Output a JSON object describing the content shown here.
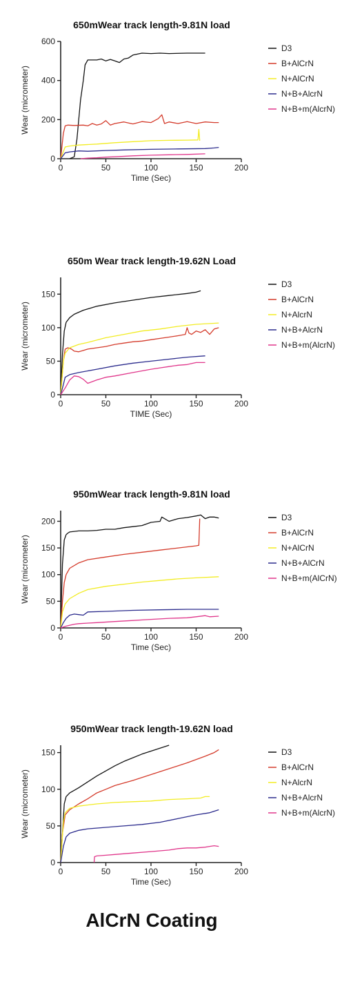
{
  "footer": {
    "title": "AlCrN Coating"
  },
  "chart_data": [
    {
      "type": "line",
      "title": "650mWear track length-9.81N load",
      "xlabel": "Time (Sec)",
      "ylabel": "Wear (micrometer)",
      "xlim": [
        0,
        200
      ],
      "ylim": [
        0,
        600
      ],
      "xticks": [
        0,
        50,
        100,
        150,
        200
      ],
      "yticks": [
        0,
        200,
        400,
        600
      ],
      "legend_position": "right",
      "grid": false,
      "series": [
        {
          "name": "D3",
          "color": "#111111",
          "x": [
            10,
            15,
            18,
            20,
            22,
            25,
            27,
            30,
            40,
            45,
            50,
            55,
            60,
            65,
            70,
            75,
            80,
            90,
            100,
            110,
            120,
            140,
            160
          ],
          "y": [
            0,
            10,
            100,
            200,
            300,
            400,
            480,
            505,
            505,
            510,
            500,
            508,
            500,
            492,
            510,
            515,
            530,
            540,
            538,
            540,
            538,
            540,
            540
          ]
        },
        {
          "name": "B+AlCrN",
          "color": "#d43a2a",
          "x": [
            0,
            3,
            5,
            8,
            15,
            25,
            30,
            35,
            40,
            45,
            50,
            55,
            60,
            70,
            80,
            90,
            100,
            108,
            112,
            115,
            120,
            130,
            140,
            150,
            160,
            170,
            175
          ],
          "y": [
            0,
            130,
            168,
            172,
            170,
            172,
            168,
            180,
            172,
            178,
            195,
            172,
            180,
            188,
            178,
            190,
            185,
            205,
            225,
            180,
            188,
            180,
            190,
            180,
            188,
            185,
            185
          ]
        },
        {
          "name": "N+AlCrN",
          "color": "#f2ec22",
          "x": [
            0,
            5,
            10,
            20,
            40,
            60,
            80,
            100,
            120,
            140,
            152,
            153,
            154
          ],
          "y": [
            0,
            60,
            65,
            70,
            75,
            82,
            87,
            92,
            94,
            95,
            96,
            150,
            92
          ]
        },
        {
          "name": "N+B+AlcrN",
          "color": "#2a2a8c",
          "x": [
            0,
            5,
            10,
            20,
            30,
            50,
            70,
            100,
            130,
            160,
            170,
            175
          ],
          "y": [
            0,
            30,
            35,
            40,
            38,
            42,
            45,
            48,
            50,
            52,
            55,
            58
          ]
        },
        {
          "name": "N+B+m(AlcrN)",
          "color": "#e0358a",
          "x": [
            22,
            30,
            40,
            50,
            60,
            80,
            100,
            120,
            140,
            160
          ],
          "y": [
            0,
            3,
            5,
            8,
            10,
            15,
            18,
            20,
            22,
            25
          ]
        }
      ]
    },
    {
      "type": "line",
      "title": "650m Wear track length-19.62N Load",
      "xlabel": "TIME (Sec)",
      "ylabel": "Wear (micrometer)",
      "xlim": [
        0,
        200
      ],
      "ylim": [
        0,
        175
      ],
      "xticks": [
        0,
        50,
        100,
        150,
        200
      ],
      "yticks": [
        0,
        50,
        100,
        150
      ],
      "legend_position": "right",
      "grid": false,
      "series": [
        {
          "name": "D3",
          "color": "#111111",
          "x": [
            0,
            2,
            4,
            6,
            10,
            15,
            25,
            40,
            60,
            80,
            100,
            120,
            140,
            150,
            155
          ],
          "y": [
            0,
            60,
            95,
            108,
            115,
            120,
            126,
            132,
            137,
            141,
            145,
            148,
            151,
            153,
            155
          ]
        },
        {
          "name": "B+AlCrN",
          "color": "#d43a2a",
          "x": [
            0,
            3,
            5,
            8,
            12,
            15,
            20,
            25,
            30,
            40,
            50,
            60,
            70,
            80,
            90,
            100,
            110,
            120,
            130,
            138,
            140,
            142,
            145,
            150,
            155,
            160,
            165,
            170,
            175
          ],
          "y": [
            0,
            50,
            68,
            70,
            68,
            65,
            64,
            66,
            68,
            70,
            72,
            75,
            77,
            79,
            80,
            82,
            84,
            86,
            88,
            90,
            100,
            92,
            90,
            95,
            93,
            97,
            90,
            98,
            100
          ]
        },
        {
          "name": "N+AlcrN",
          "color": "#f2ec22",
          "x": [
            0,
            3,
            5,
            10,
            20,
            30,
            50,
            70,
            90,
            110,
            130,
            150,
            175
          ],
          "y": [
            0,
            50,
            62,
            70,
            75,
            78,
            85,
            90,
            95,
            98,
            102,
            105,
            107
          ]
        },
        {
          "name": "N+B+AlcrN",
          "color": "#2a2a8c",
          "x": [
            0,
            3,
            5,
            10,
            20,
            40,
            60,
            80,
            100,
            120,
            140,
            160
          ],
          "y": [
            0,
            15,
            26,
            30,
            33,
            38,
            43,
            47,
            50,
            53,
            56,
            58
          ]
        },
        {
          "name": "N+B+m(AlcrN)",
          "color": "#e0358a",
          "x": [
            0,
            5,
            10,
            15,
            20,
            25,
            30,
            40,
            50,
            60,
            80,
            100,
            110,
            120,
            130,
            140,
            150,
            160
          ],
          "y": [
            0,
            10,
            22,
            28,
            27,
            23,
            17,
            22,
            26,
            28,
            33,
            38,
            40,
            42,
            44,
            45,
            48,
            48
          ]
        }
      ]
    },
    {
      "type": "line",
      "title": "950mWear track length-9.81N load",
      "xlabel": "Time (Sec)",
      "ylabel": "Wear (micrometer)",
      "xlim": [
        0,
        200
      ],
      "ylim": [
        0,
        220
      ],
      "xticks": [
        0,
        50,
        100,
        150,
        200
      ],
      "yticks": [
        0,
        50,
        100,
        150,
        200
      ],
      "legend_position": "right",
      "grid": false,
      "series": [
        {
          "name": "D3",
          "color": "#111111",
          "x": [
            0,
            2,
            4,
            6,
            8,
            10,
            20,
            30,
            40,
            50,
            60,
            70,
            80,
            90,
            100,
            110,
            112,
            120,
            130,
            140,
            150,
            155,
            160,
            165,
            170,
            175
          ],
          "y": [
            0,
            120,
            165,
            175,
            178,
            180,
            182,
            182,
            183,
            185,
            185,
            188,
            190,
            192,
            198,
            200,
            208,
            200,
            205,
            207,
            210,
            212,
            205,
            208,
            208,
            206
          ]
        },
        {
          "name": "B+AlCrN",
          "color": "#d43a2a",
          "x": [
            0,
            2,
            4,
            6,
            10,
            20,
            30,
            50,
            70,
            90,
            110,
            130,
            150,
            153,
            154
          ],
          "y": [
            0,
            50,
            85,
            100,
            112,
            122,
            128,
            133,
            138,
            142,
            146,
            150,
            154,
            155,
            205
          ]
        },
        {
          "name": "N+AlCrN",
          "color": "#f2ec22",
          "x": [
            0,
            2,
            5,
            10,
            20,
            30,
            50,
            70,
            90,
            110,
            130,
            150,
            175
          ],
          "y": [
            0,
            30,
            45,
            55,
            65,
            72,
            78,
            82,
            86,
            89,
            92,
            94,
            96
          ]
        },
        {
          "name": "N+B+AlCrN",
          "color": "#2a2a8c",
          "x": [
            0,
            3,
            6,
            10,
            15,
            20,
            25,
            30,
            50,
            80,
            110,
            140,
            175
          ],
          "y": [
            0,
            10,
            18,
            24,
            26,
            25,
            24,
            30,
            31,
            33,
            34,
            35,
            35
          ]
        },
        {
          "name": "N+B+m(AlCrN)",
          "color": "#e0358a",
          "x": [
            0,
            5,
            10,
            15,
            20,
            30,
            40,
            60,
            80,
            100,
            120,
            140,
            150,
            160,
            165,
            175
          ],
          "y": [
            0,
            3,
            5,
            7,
            8,
            9,
            10,
            12,
            14,
            16,
            18,
            19,
            21,
            23,
            21,
            22
          ]
        }
      ]
    },
    {
      "type": "line",
      "title": "950mWear track length-19.62N load",
      "xlabel": "Time (Sec)",
      "ylabel": "Wear (micrometer)",
      "xlim": [
        0,
        200
      ],
      "ylim": [
        0,
        160
      ],
      "xticks": [
        0,
        50,
        100,
        150,
        200
      ],
      "yticks": [
        0,
        50,
        100,
        150
      ],
      "legend_position": "right",
      "grid": false,
      "series": [
        {
          "name": "D3",
          "color": "#111111",
          "x": [
            0,
            2,
            4,
            6,
            10,
            20,
            30,
            40,
            50,
            60,
            70,
            80,
            90,
            100,
            110,
            120
          ],
          "y": [
            0,
            40,
            80,
            90,
            95,
            102,
            110,
            118,
            125,
            132,
            138,
            143,
            148,
            152,
            156,
            160
          ]
        },
        {
          "name": "B+AlCrN",
          "color": "#d43a2a",
          "x": [
            0,
            2,
            5,
            10,
            20,
            30,
            40,
            50,
            60,
            80,
            100,
            120,
            140,
            160,
            170,
            175
          ],
          "y": [
            0,
            40,
            65,
            72,
            80,
            87,
            95,
            100,
            105,
            112,
            120,
            128,
            136,
            145,
            150,
            154
          ]
        },
        {
          "name": "N+AlcrN",
          "color": "#f2ec22",
          "x": [
            0,
            3,
            5,
            10,
            20,
            40,
            60,
            80,
            100,
            120,
            140,
            155,
            160,
            165
          ],
          "y": [
            0,
            55,
            68,
            74,
            77,
            80,
            82,
            83,
            84,
            86,
            87,
            88,
            90,
            90
          ]
        },
        {
          "name": "N+B+AlcrN",
          "color": "#2a2a8c",
          "x": [
            0,
            3,
            6,
            10,
            20,
            30,
            50,
            70,
            90,
            110,
            130,
            150,
            165,
            175
          ],
          "y": [
            0,
            22,
            35,
            40,
            44,
            46,
            48,
            50,
            52,
            55,
            60,
            65,
            68,
            72
          ]
        },
        {
          "name": "N+B+m(AlcrN)",
          "color": "#e0358a",
          "x": [
            37,
            37.5,
            40,
            50,
            60,
            80,
            100,
            120,
            130,
            140,
            150,
            160,
            165,
            170,
            175
          ],
          "y": [
            0,
            8,
            9,
            10,
            11,
            13,
            15,
            17,
            19,
            20,
            20,
            21,
            22,
            23,
            22
          ]
        }
      ]
    }
  ]
}
